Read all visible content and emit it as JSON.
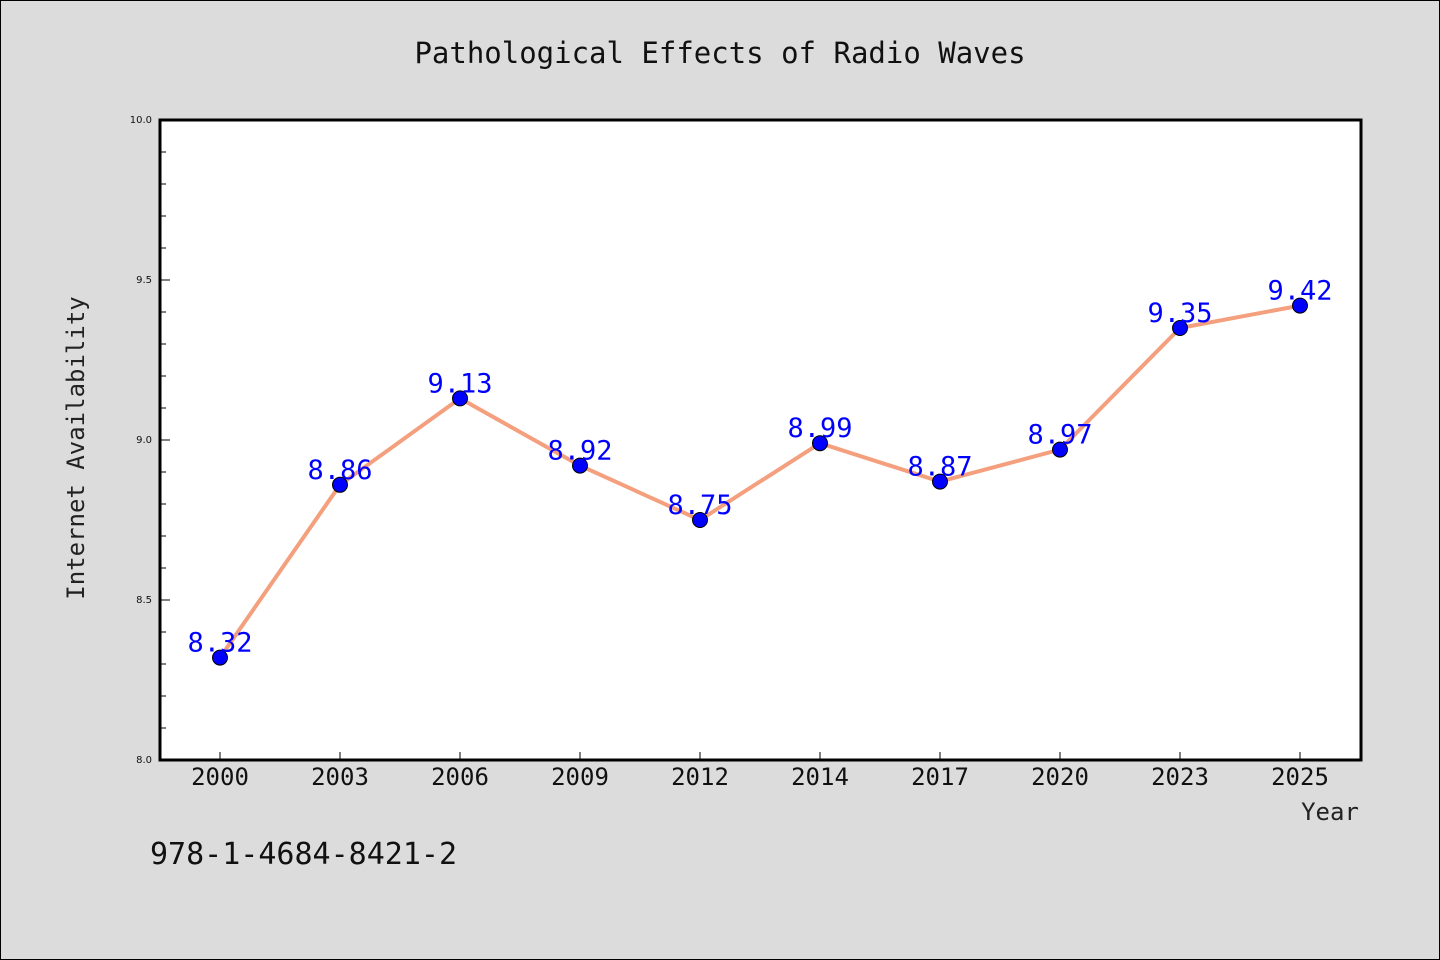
{
  "chart_data": {
    "type": "line",
    "title": "Pathological Effects of Radio Waves",
    "xlabel": "Year",
    "ylabel": "Internet Availability",
    "categories": [
      "2000",
      "2003",
      "2006",
      "2009",
      "2012",
      "2014",
      "2017",
      "2020",
      "2023",
      "2025"
    ],
    "values": [
      8.32,
      8.86,
      9.13,
      8.92,
      8.75,
      8.99,
      8.87,
      8.97,
      9.35,
      9.42
    ],
    "data_labels": [
      "8.32",
      "8.86",
      "9.13",
      "8.92",
      "8.75",
      "8.99",
      "8.87",
      "8.97",
      "9.35",
      "9.42"
    ],
    "ylim": [
      8.0,
      10.0
    ],
    "y_major_ticks": [
      "8.0",
      "8.5",
      "9.0",
      "9.5",
      "10.0"
    ],
    "grid": false,
    "line_color": "#f4a07e",
    "marker_color": "#0000ff",
    "label_color": "#0000ff"
  },
  "footnote": "978-1-4684-8421-2"
}
